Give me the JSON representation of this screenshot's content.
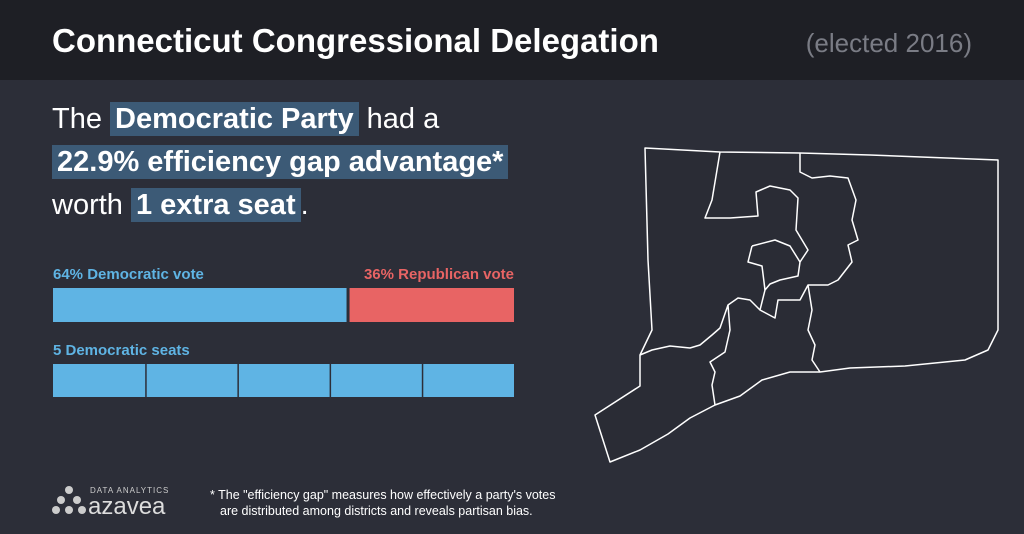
{
  "header": {
    "title": "Connecticut Congressional Delegation",
    "subtitle": "(elected 2016)"
  },
  "headline": [
    "The",
    "Democratic Party",
    "had a",
    "22.9% efficiency gap advantage*",
    "worth",
    "1 extra seat",
    "."
  ],
  "vote_bar": [
    {
      "label": "64% Democratic vote",
      "value": 64,
      "color": "#5fb4e4"
    },
    {
      "label": "36% Republican vote",
      "value": 36,
      "color": "#e86464"
    }
  ],
  "seats": {
    "label": "5 Democratic seats",
    "count": 5,
    "color": "#5fb4e4"
  },
  "footnote": [
    "* The \"efficiency gap\" measures how effectively a party's votes",
    "are distributed among districts and reveals partisan bias."
  ],
  "logo": {
    "tagline": "DATA ANALYTICS",
    "name": "azavea"
  }
}
